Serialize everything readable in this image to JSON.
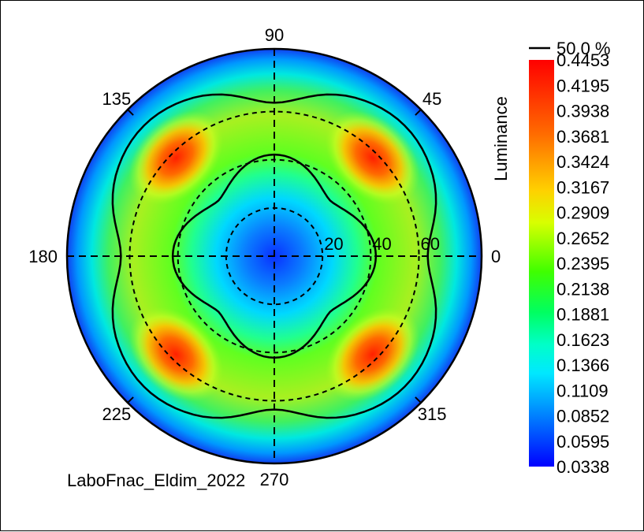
{
  "chart_data": {
    "type": "heatmap",
    "subtype": "polar-conoscope",
    "quantity": "Luminance",
    "contour_label": "50.0 %",
    "angle_labels": [
      "90",
      "45",
      "0",
      "315",
      "270",
      "225",
      "180",
      "135"
    ],
    "radius_labels": [
      "20",
      "40",
      "60"
    ],
    "colorbar_ticks": [
      "0.4453",
      "0.4195",
      "0.3938",
      "0.3681",
      "0.3424",
      "0.3167",
      "0.2909",
      "0.2652",
      "0.2395",
      "0.2138",
      "0.1881",
      "0.1623",
      "0.1366",
      "0.1109",
      "0.0852",
      "0.0595",
      "0.0338"
    ],
    "value_range": [
      0.0338,
      0.4453
    ],
    "grid": true,
    "caption": "LaboFnac_Eldim_2022"
  },
  "colors": {
    "colormap": [
      "#0000ff",
      "#0096ff",
      "#00ffff",
      "#00ff80",
      "#00ff00",
      "#ffff00",
      "#ff8000",
      "#ff0000"
    ]
  }
}
